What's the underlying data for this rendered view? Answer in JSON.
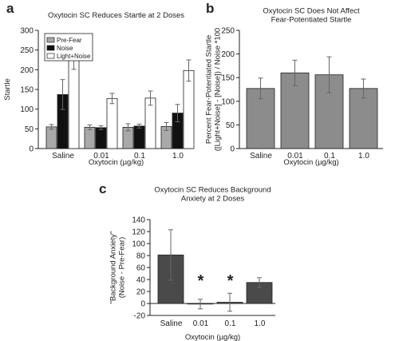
{
  "figure": {
    "panel_labels": [
      "a",
      "b",
      "c"
    ]
  },
  "chart_data": [
    {
      "panel": "a",
      "type": "bar",
      "title": "Oxytocin SC Reduces Startle at 2 Doses",
      "xlabel": "Oxytocin (µg/kg)",
      "ylabel": "Startle",
      "categories": [
        "Saline",
        "0.01",
        "0.1",
        "1.0"
      ],
      "ylim": [
        0,
        300
      ],
      "yticks": [
        0,
        50,
        100,
        150,
        200,
        250,
        300
      ],
      "legend_position": "top-left",
      "grid": false,
      "series": [
        {
          "name": "Pre-Fear",
          "color": "#a9a9a9",
          "values": [
            55,
            54,
            54,
            56
          ],
          "errors": [
            6,
            6,
            9,
            10
          ]
        },
        {
          "name": "Noise",
          "color": "#111111",
          "values": [
            137,
            53,
            57,
            90
          ],
          "errors": [
            38,
            5,
            5,
            22
          ]
        },
        {
          "name": "Light+Noise",
          "color": "#ffffff",
          "values": [
            237,
            127,
            128,
            198
          ],
          "errors": [
            36,
            13,
            18,
            27
          ]
        }
      ]
    },
    {
      "panel": "b",
      "type": "bar",
      "title": "Oxytocin SC Does Not Affect\nFear-Potentiated Startle",
      "xlabel": "Oxytocin (µg/kg)",
      "ylabel": "Percent Fear-Potentiated Startle\n([Light+Noise] - [Noise]) / Noise *100",
      "categories": [
        "Saline",
        "0.01",
        "0.1",
        "1.0"
      ],
      "ylim": [
        0,
        250
      ],
      "yticks": [
        0,
        50,
        100,
        150,
        200,
        250
      ],
      "grid": false,
      "series": [
        {
          "color": "#8c8c8c",
          "values": [
            127,
            160,
            156,
            127
          ],
          "errors": [
            22,
            27,
            38,
            20
          ]
        }
      ]
    },
    {
      "panel": "c",
      "type": "bar",
      "title": "Oxytocin SC Reduces Background\nAnxiety at 2 Doses",
      "xlabel": "Oxytocin (µg/kg)",
      "ylabel": "\"Background Anxiety\"\n(Noise - Pre-Fear)",
      "categories": [
        "Saline",
        "0.01",
        "0.1",
        "1.0"
      ],
      "ylim": [
        -20,
        140
      ],
      "yticks": [
        -20,
        0,
        20,
        40,
        60,
        80,
        100,
        120,
        140
      ],
      "grid": false,
      "significance_markers": [
        "",
        "*",
        "*",
        ""
      ],
      "series": [
        {
          "color": "#4a4a4a",
          "values": [
            81,
            -1,
            2,
            35
          ],
          "errors": [
            42,
            8,
            15,
            8
          ]
        }
      ]
    }
  ]
}
